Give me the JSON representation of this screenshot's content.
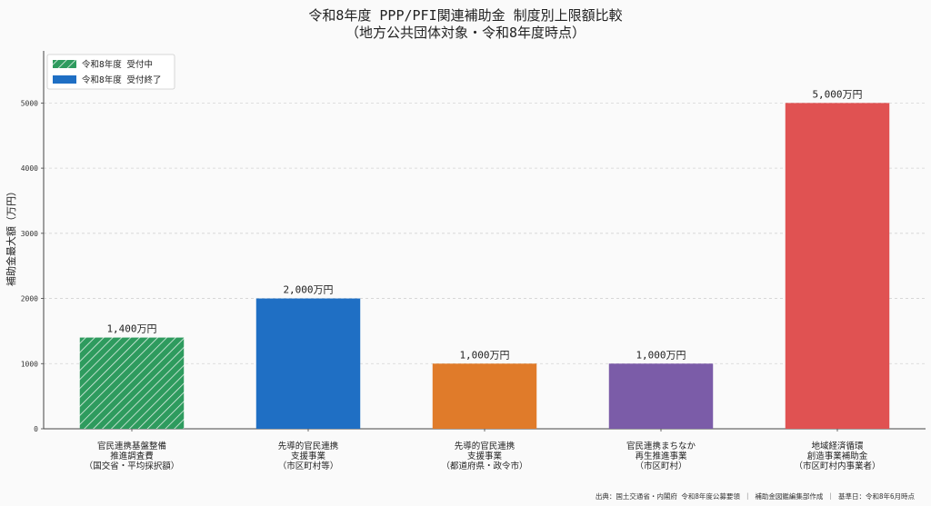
{
  "chart_data": {
    "type": "bar",
    "title_lines": [
      "令和8年度 PPP/PFI関連補助金 制度別上限額比較",
      "（地方公共団体対象・令和8年度時点）"
    ],
    "ylabel": "補助金最大額（万円）",
    "xlabel": "",
    "ylim": [
      0,
      5800
    ],
    "yticks": [
      0,
      1000,
      2000,
      3000,
      4000,
      5000
    ],
    "grid": true,
    "legend_position": "top-left",
    "legend": [
      {
        "label": "令和8年度 受付中",
        "color": "#2e9b5e",
        "hatched": true
      },
      {
        "label": "令和8年度 受付終了",
        "color": "#1f6fc4",
        "hatched": false
      }
    ],
    "categories": [
      [
        "官民連携基盤整備",
        "推進調査費",
        "（国交省・平均採択額）"
      ],
      [
        "先導的官民連携",
        "支援事業",
        "（市区町村等）"
      ],
      [
        "先導的官民連携",
        "支援事業",
        "（都道府県・政令市）"
      ],
      [
        "官民連携まちなか",
        "再生推進事業",
        "（市区町村）"
      ],
      [
        "地域経済循環",
        "創造事業補助金",
        "（市区町村内事業者）"
      ]
    ],
    "values": [
      1400,
      2000,
      1000,
      1000,
      5000
    ],
    "value_labels": [
      "1,400万円",
      "2,000万円",
      "1,000万円",
      "1,000万円",
      "5,000万円"
    ],
    "bar_colors": [
      "#2e9b5e",
      "#1f6fc4",
      "#e07b2a",
      "#7b5ca8",
      "#e05252"
    ],
    "bar_hatched": [
      true,
      false,
      false,
      false,
      false
    ]
  },
  "source_note": "出典：国土交通省・内閣府 令和8年度公募要領 ｜ 補助金図鑑編集部作成 ｜ 基準日：令和8年6月時点"
}
